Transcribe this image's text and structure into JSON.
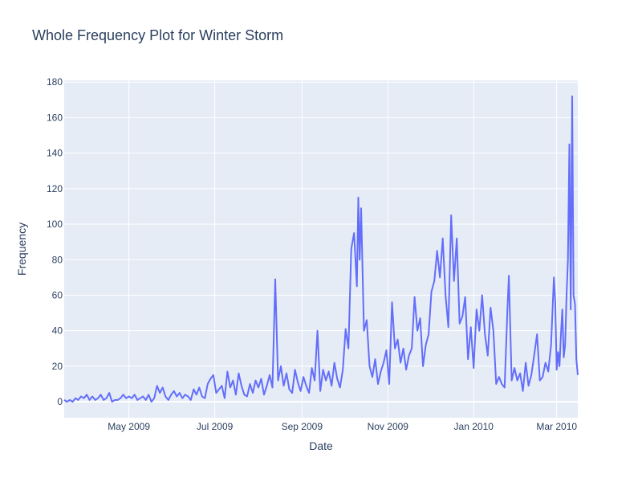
{
  "chart_data": {
    "type": "line",
    "title": "Whole Frequency Plot for Winter Storm",
    "xlabel": "Date",
    "ylabel": "Frequency",
    "xlim": [
      "2009-03-16",
      "2010-03-16"
    ],
    "ylim": [
      -9,
      181
    ],
    "grid": true,
    "colors": {
      "line": "#636efa",
      "plot_bg": "#e5ecf6",
      "grid": "#ffffff",
      "text": "#2a3f5f"
    },
    "x_ticks": [
      {
        "date": "2009-05-01",
        "label": "May 2009"
      },
      {
        "date": "2009-07-01",
        "label": "Jul 2009"
      },
      {
        "date": "2009-09-01",
        "label": "Sep 2009"
      },
      {
        "date": "2009-11-01",
        "label": "Nov 2009"
      },
      {
        "date": "2010-01-01",
        "label": "Jan 2010"
      },
      {
        "date": "2010-03-01",
        "label": "Mar 2010"
      }
    ],
    "y_ticks": [
      0,
      20,
      40,
      60,
      80,
      100,
      120,
      140,
      160,
      180
    ],
    "series": [
      {
        "points": [
          [
            "2009-03-16",
            1
          ],
          [
            "2009-03-18",
            0
          ],
          [
            "2009-03-20",
            1
          ],
          [
            "2009-03-22",
            0
          ],
          [
            "2009-03-24",
            2
          ],
          [
            "2009-03-26",
            1
          ],
          [
            "2009-03-28",
            3
          ],
          [
            "2009-03-30",
            2
          ],
          [
            "2009-04-01",
            4
          ],
          [
            "2009-04-03",
            1
          ],
          [
            "2009-04-05",
            3
          ],
          [
            "2009-04-07",
            1
          ],
          [
            "2009-04-09",
            2
          ],
          [
            "2009-04-11",
            4
          ],
          [
            "2009-04-13",
            1
          ],
          [
            "2009-04-15",
            2
          ],
          [
            "2009-04-17",
            5
          ],
          [
            "2009-04-19",
            0
          ],
          [
            "2009-04-21",
            1
          ],
          [
            "2009-04-23",
            1
          ],
          [
            "2009-04-25",
            2
          ],
          [
            "2009-04-27",
            4
          ],
          [
            "2009-04-29",
            2
          ],
          [
            "2009-05-01",
            3
          ],
          [
            "2009-05-03",
            2
          ],
          [
            "2009-05-05",
            4
          ],
          [
            "2009-05-07",
            1
          ],
          [
            "2009-05-09",
            2
          ],
          [
            "2009-05-11",
            3
          ],
          [
            "2009-05-13",
            1
          ],
          [
            "2009-05-15",
            4
          ],
          [
            "2009-05-17",
            0
          ],
          [
            "2009-05-19",
            2
          ],
          [
            "2009-05-21",
            9
          ],
          [
            "2009-05-23",
            5
          ],
          [
            "2009-05-25",
            8
          ],
          [
            "2009-05-27",
            3
          ],
          [
            "2009-05-29",
            1
          ],
          [
            "2009-05-31",
            4
          ],
          [
            "2009-06-02",
            6
          ],
          [
            "2009-06-04",
            3
          ],
          [
            "2009-06-06",
            5
          ],
          [
            "2009-06-08",
            2
          ],
          [
            "2009-06-10",
            4
          ],
          [
            "2009-06-12",
            3
          ],
          [
            "2009-06-14",
            1
          ],
          [
            "2009-06-16",
            7
          ],
          [
            "2009-06-18",
            4
          ],
          [
            "2009-06-20",
            8
          ],
          [
            "2009-06-22",
            3
          ],
          [
            "2009-06-24",
            2
          ],
          [
            "2009-06-26",
            10
          ],
          [
            "2009-06-28",
            13
          ],
          [
            "2009-06-30",
            15
          ],
          [
            "2009-07-02",
            5
          ],
          [
            "2009-07-04",
            7
          ],
          [
            "2009-07-06",
            9
          ],
          [
            "2009-07-08",
            2
          ],
          [
            "2009-07-10",
            17
          ],
          [
            "2009-07-12",
            8
          ],
          [
            "2009-07-14",
            12
          ],
          [
            "2009-07-16",
            4
          ],
          [
            "2009-07-18",
            16
          ],
          [
            "2009-07-20",
            9
          ],
          [
            "2009-07-22",
            4
          ],
          [
            "2009-07-24",
            3
          ],
          [
            "2009-07-26",
            10
          ],
          [
            "2009-07-28",
            5
          ],
          [
            "2009-07-30",
            12
          ],
          [
            "2009-08-01",
            8
          ],
          [
            "2009-08-03",
            13
          ],
          [
            "2009-08-05",
            4
          ],
          [
            "2009-08-07",
            9
          ],
          [
            "2009-08-09",
            15
          ],
          [
            "2009-08-11",
            8
          ],
          [
            "2009-08-13",
            69
          ],
          [
            "2009-08-15",
            12
          ],
          [
            "2009-08-17",
            20
          ],
          [
            "2009-08-19",
            9
          ],
          [
            "2009-08-21",
            16
          ],
          [
            "2009-08-23",
            7
          ],
          [
            "2009-08-25",
            5
          ],
          [
            "2009-08-27",
            18
          ],
          [
            "2009-08-29",
            11
          ],
          [
            "2009-08-31",
            6
          ],
          [
            "2009-09-02",
            14
          ],
          [
            "2009-09-04",
            9
          ],
          [
            "2009-09-06",
            5
          ],
          [
            "2009-09-08",
            19
          ],
          [
            "2009-09-10",
            12
          ],
          [
            "2009-09-12",
            40
          ],
          [
            "2009-09-14",
            6
          ],
          [
            "2009-09-16",
            18
          ],
          [
            "2009-09-18",
            12
          ],
          [
            "2009-09-20",
            17
          ],
          [
            "2009-09-22",
            9
          ],
          [
            "2009-09-24",
            22
          ],
          [
            "2009-09-26",
            13
          ],
          [
            "2009-09-28",
            8
          ],
          [
            "2009-09-30",
            18
          ],
          [
            "2009-10-02",
            41
          ],
          [
            "2009-10-04",
            30
          ],
          [
            "2009-10-06",
            86
          ],
          [
            "2009-10-08",
            95
          ],
          [
            "2009-10-10",
            65
          ],
          [
            "2009-10-11",
            115
          ],
          [
            "2009-10-12",
            80
          ],
          [
            "2009-10-13",
            109
          ],
          [
            "2009-10-15",
            40
          ],
          [
            "2009-10-17",
            46
          ],
          [
            "2009-10-19",
            20
          ],
          [
            "2009-10-21",
            14
          ],
          [
            "2009-10-23",
            24
          ],
          [
            "2009-10-25",
            10
          ],
          [
            "2009-10-27",
            17
          ],
          [
            "2009-10-29",
            22
          ],
          [
            "2009-10-31",
            29
          ],
          [
            "2009-11-02",
            10
          ],
          [
            "2009-11-04",
            56
          ],
          [
            "2009-11-06",
            30
          ],
          [
            "2009-11-08",
            35
          ],
          [
            "2009-11-10",
            22
          ],
          [
            "2009-11-12",
            30
          ],
          [
            "2009-11-14",
            18
          ],
          [
            "2009-11-16",
            26
          ],
          [
            "2009-11-18",
            30
          ],
          [
            "2009-11-20",
            59
          ],
          [
            "2009-11-22",
            40
          ],
          [
            "2009-11-24",
            47
          ],
          [
            "2009-11-26",
            20
          ],
          [
            "2009-11-28",
            32
          ],
          [
            "2009-11-30",
            38
          ],
          [
            "2009-12-02",
            62
          ],
          [
            "2009-12-04",
            68
          ],
          [
            "2009-12-06",
            85
          ],
          [
            "2009-12-08",
            70
          ],
          [
            "2009-12-10",
            92
          ],
          [
            "2009-12-12",
            60
          ],
          [
            "2009-12-14",
            42
          ],
          [
            "2009-12-16",
            105
          ],
          [
            "2009-12-18",
            68
          ],
          [
            "2009-12-20",
            92
          ],
          [
            "2009-12-22",
            44
          ],
          [
            "2009-12-24",
            48
          ],
          [
            "2009-12-26",
            59
          ],
          [
            "2009-12-28",
            24
          ],
          [
            "2009-12-30",
            42
          ],
          [
            "2010-01-01",
            19
          ],
          [
            "2010-01-03",
            52
          ],
          [
            "2010-01-05",
            40
          ],
          [
            "2010-01-07",
            60
          ],
          [
            "2010-01-09",
            38
          ],
          [
            "2010-01-11",
            26
          ],
          [
            "2010-01-13",
            53
          ],
          [
            "2010-01-15",
            40
          ],
          [
            "2010-01-17",
            10
          ],
          [
            "2010-01-19",
            14
          ],
          [
            "2010-01-21",
            10
          ],
          [
            "2010-01-23",
            8
          ],
          [
            "2010-01-25",
            52
          ],
          [
            "2010-01-26",
            71
          ],
          [
            "2010-01-28",
            12
          ],
          [
            "2010-01-30",
            19
          ],
          [
            "2010-02-01",
            12
          ],
          [
            "2010-02-03",
            16
          ],
          [
            "2010-02-05",
            6
          ],
          [
            "2010-02-07",
            22
          ],
          [
            "2010-02-09",
            9
          ],
          [
            "2010-02-11",
            15
          ],
          [
            "2010-02-13",
            26
          ],
          [
            "2010-02-15",
            38
          ],
          [
            "2010-02-17",
            12
          ],
          [
            "2010-02-19",
            14
          ],
          [
            "2010-02-21",
            22
          ],
          [
            "2010-02-23",
            17
          ],
          [
            "2010-02-25",
            32
          ],
          [
            "2010-02-27",
            70
          ],
          [
            "2010-02-28",
            56
          ],
          [
            "2010-03-01",
            18
          ],
          [
            "2010-03-02",
            28
          ],
          [
            "2010-03-03",
            20
          ],
          [
            "2010-03-04",
            38
          ],
          [
            "2010-03-05",
            52
          ],
          [
            "2010-03-06",
            25
          ],
          [
            "2010-03-07",
            32
          ],
          [
            "2010-03-08",
            60
          ],
          [
            "2010-03-09",
            80
          ],
          [
            "2010-03-10",
            145
          ],
          [
            "2010-03-11",
            52
          ],
          [
            "2010-03-12",
            172
          ],
          [
            "2010-03-13",
            60
          ],
          [
            "2010-03-14",
            55
          ],
          [
            "2010-03-15",
            24
          ],
          [
            "2010-03-16",
            15
          ]
        ]
      }
    ]
  }
}
